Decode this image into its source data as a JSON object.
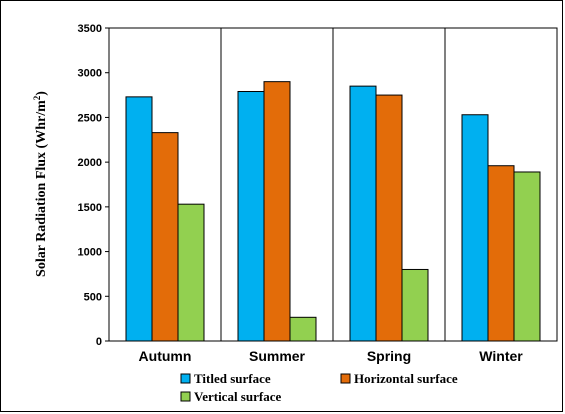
{
  "chart_data": {
    "type": "bar",
    "title": "",
    "xlabel": "",
    "ylabel": "Solar Radiation Flux (Whr/m",
    "ylabel_sup": "2",
    "ylabel_tail": ")",
    "ylim": [
      0,
      3500
    ],
    "yticks": [
      0,
      500,
      1000,
      1500,
      2000,
      2500,
      3000,
      3500
    ],
    "grid": "vertical category separators",
    "legend_placement": "bottom",
    "categories": [
      "Autumn",
      "Summer",
      "Spring",
      "Winter"
    ],
    "series": [
      {
        "name": "Titled surface",
        "color": "#00b0f0",
        "values": [
          2730,
          2790,
          2850,
          2530
        ]
      },
      {
        "name": "Horizontal surface",
        "color": "#e36c09",
        "values": [
          2330,
          2900,
          2750,
          1960
        ]
      },
      {
        "name": "Vertical surface",
        "color": "#92d050",
        "values": [
          1530,
          265,
          800,
          1890
        ]
      }
    ]
  }
}
